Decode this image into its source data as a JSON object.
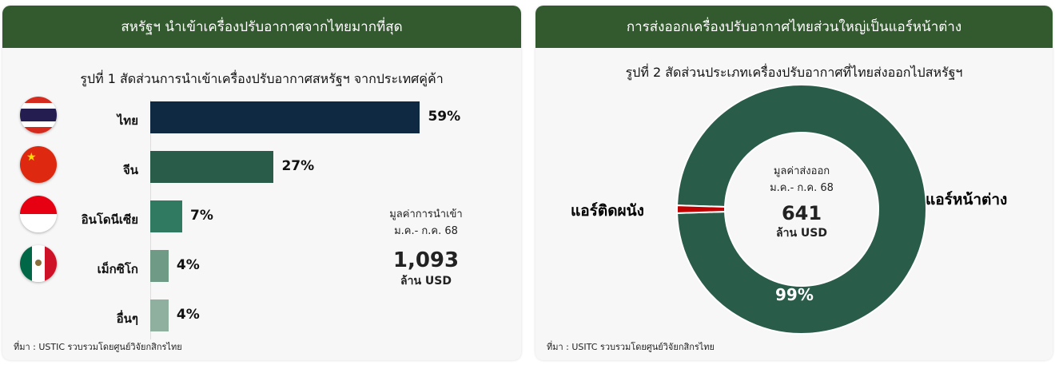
{
  "left_panel": {
    "header": "สหรัฐฯ นำเข้าเครื่องปรับอากาศจากไทยมากที่สุด",
    "source": "ที่มา : USTIC รวบรวมโดยศูนย์วิจัยกสิกรไทย",
    "total": {
      "label_line1": "มูลค่าการนำเข้า",
      "label_line2": "ม.ค.- ก.ค. 68",
      "value": "1,093",
      "unit": "ล้าน USD"
    }
  },
  "right_panel": {
    "header": "การส่งออกเครื่องปรับอากาศไทยส่วนใหญ่เป็นแอร์หน้าต่าง",
    "source": "ที่มา : USITC รวบรวมโดยศูนย์วิจัยกสิกรไทย",
    "total": {
      "label_line1": "มูลค่าส่งออก",
      "label_line2": "ม.ค.- ก.ค. 68",
      "value": "641",
      "unit": "ล้าน USD"
    }
  },
  "chart_data": [
    {
      "type": "bar",
      "orientation": "horizontal",
      "title": "รูปที่ 1 สัดส่วนการนำเข้าเครื่องปรับอากาศสหรัฐฯ จากประเทศคู่ค้า",
      "categories": [
        "ไทย",
        "จีน",
        "อินโดนีเซีย",
        "เม็กซิโก",
        "อื่นๆ"
      ],
      "values": [
        59,
        27,
        7,
        4,
        4
      ],
      "labels": [
        "59%",
        "27%",
        "7%",
        "4%",
        "4%"
      ],
      "colors": [
        "#0f2942",
        "#2a5c4a",
        "#2f7a60",
        "#6f9a86",
        "#8fb09f"
      ],
      "flags": [
        "thailand-flag",
        "china-flag",
        "indonesia-flag",
        "mexico-flag",
        null
      ],
      "unit": "%"
    },
    {
      "type": "pie",
      "variant": "donut",
      "title": "รูปที่ 2 สัดส่วนประเภทเครื่องปรับอากาศที่ไทยส่งออกไปสหรัฐฯ",
      "categories": [
        "แอร์หน้าต่าง",
        "แอร์ติดผนัง"
      ],
      "values": [
        99,
        1
      ],
      "labels": [
        "99%",
        ""
      ],
      "colors": [
        "#2a5c4a",
        "#c00000"
      ]
    }
  ]
}
